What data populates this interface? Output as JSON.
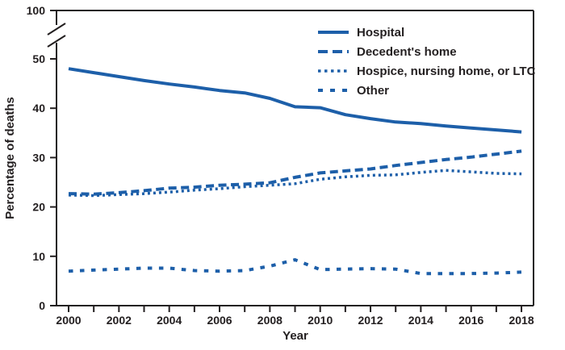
{
  "chart_data": {
    "type": "line",
    "title": "",
    "xlabel": "Year",
    "ylabel": "Percentage of deaths",
    "x": [
      2000,
      2001,
      2002,
      2003,
      2004,
      2005,
      2006,
      2007,
      2008,
      2009,
      2010,
      2011,
      2012,
      2013,
      2014,
      2015,
      2016,
      2017,
      2018
    ],
    "series": [
      {
        "name": "Hospital",
        "style": "solid",
        "values": [
          48.0,
          47.2,
          46.4,
          45.6,
          44.9,
          44.3,
          43.6,
          43.1,
          42.0,
          40.3,
          40.1,
          38.7,
          37.9,
          37.2,
          36.9,
          36.4,
          36.0,
          35.6,
          35.2
        ]
      },
      {
        "name": "Decedent's home",
        "style": "long-dash",
        "values": [
          22.7,
          22.6,
          22.9,
          23.3,
          23.8,
          24.0,
          24.4,
          24.6,
          24.9,
          26.0,
          26.9,
          27.3,
          27.7,
          28.4,
          29.0,
          29.6,
          30.1,
          30.7,
          31.3
        ]
      },
      {
        "name": "Hospice, nursing home, or LTC",
        "style": "dotted",
        "values": [
          22.4,
          22.3,
          22.5,
          22.7,
          23.0,
          23.4,
          23.7,
          24.1,
          24.4,
          24.7,
          25.6,
          26.1,
          26.4,
          26.5,
          27.0,
          27.4,
          27.1,
          26.8,
          26.7
        ]
      },
      {
        "name": "Other",
        "style": "short-dash",
        "values": [
          7.0,
          7.2,
          7.4,
          7.6,
          7.6,
          7.1,
          7.0,
          7.1,
          8.0,
          9.3,
          7.3,
          7.4,
          7.5,
          7.4,
          6.5,
          6.5,
          6.5,
          6.6,
          6.8
        ]
      }
    ],
    "y_ticks": [
      0,
      10,
      20,
      30,
      40,
      50,
      100
    ],
    "y_axis_break_between": [
      50,
      100
    ],
    "x_tick_years": [
      2000,
      2001,
      2002,
      2003,
      2004,
      2005,
      2006,
      2007,
      2008,
      2009,
      2010,
      2011,
      2012,
      2013,
      2014,
      2015,
      2016,
      2017,
      2018
    ],
    "x_label_years": [
      2000,
      2002,
      2004,
      2006,
      2008,
      2010,
      2012,
      2014,
      2016,
      2018
    ],
    "ylim": [
      0,
      100
    ],
    "grid": false,
    "legend_position": "top-right",
    "colors": {
      "line": "#1d5fa9",
      "axis": "#231f20",
      "text": "#231f20"
    }
  }
}
